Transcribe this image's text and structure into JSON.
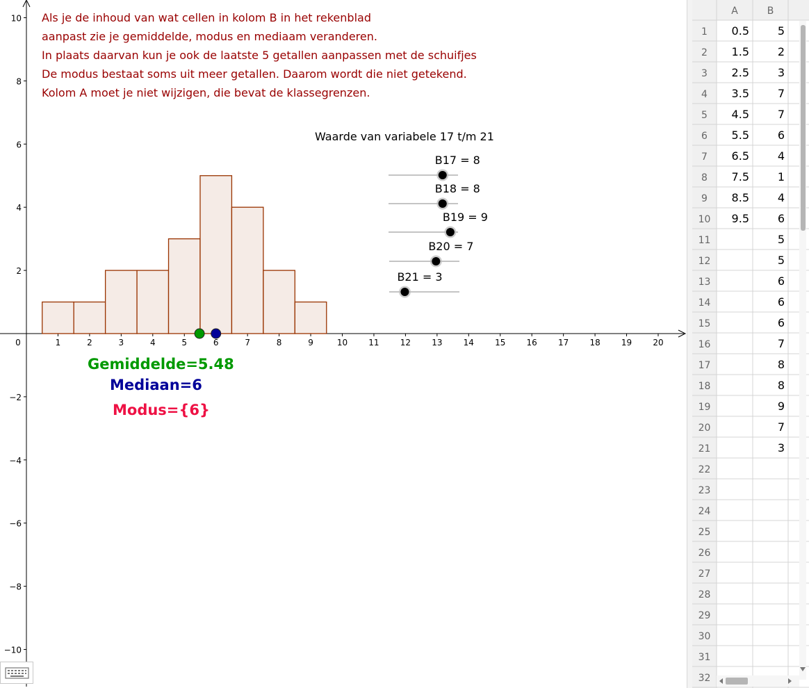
{
  "instructions": [
    "Als je de inhoud van wat cellen in kolom B in het rekenblad",
    "aanpast zie je gemiddelde, modus en mediaam veranderen.",
    "In plaats daarvan kun je ook de laatste 5 getallen aanpassen met de schuifjes",
    "De modus bestaat soms uit meer getallen. Daarom wordt die niet getekend.",
    "Kolom A moet je niet wijzigen, die bevat de klassegrenzen."
  ],
  "slider_title": "Waarde van variabele 17 t/m 21",
  "sliders": [
    {
      "label": "B17 = 8",
      "value": 8
    },
    {
      "label": "B18 = 8",
      "value": 8
    },
    {
      "label": "B19 = 9",
      "value": 9
    },
    {
      "label": "B20 = 7",
      "value": 7
    },
    {
      "label": "B21 = 3",
      "value": 3
    }
  ],
  "stats": {
    "mean_label": "Gemiddelde=5.48",
    "median_label": "Mediaan=6",
    "mode_label": "Modus={6}",
    "mean_value": 5.48,
    "median_value": 6
  },
  "colors": {
    "instructions": "#990000",
    "bar_fill": "#f5ebe6",
    "bar_stroke": "#993300",
    "mean": "#009900",
    "median": "#000099",
    "mode": "#ee1144",
    "slider_knob": "#000000"
  },
  "chart_data": {
    "type": "bar",
    "x_ticks": [
      0,
      1,
      2,
      3,
      4,
      5,
      6,
      7,
      8,
      9,
      10,
      11,
      12,
      13,
      14,
      15,
      16,
      17,
      18,
      19,
      20
    ],
    "y_ticks": [
      -10,
      -8,
      -6,
      -4,
      -2,
      2,
      4,
      6,
      8,
      10
    ],
    "xlim": [
      -0.8,
      20.9
    ],
    "ylim": [
      -10.4,
      10.6
    ],
    "bars": [
      {
        "from": 0.5,
        "to": 1.5,
        "height": 1
      },
      {
        "from": 1.5,
        "to": 2.5,
        "height": 1
      },
      {
        "from": 2.5,
        "to": 3.5,
        "height": 2
      },
      {
        "from": 3.5,
        "to": 4.5,
        "height": 2
      },
      {
        "from": 4.5,
        "to": 5.5,
        "height": 3
      },
      {
        "from": 5.5,
        "to": 6.5,
        "height": 5
      },
      {
        "from": 6.5,
        "to": 7.5,
        "height": 4
      },
      {
        "from": 7.5,
        "to": 8.5,
        "height": 2
      },
      {
        "from": 8.5,
        "to": 9.5,
        "height": 1
      }
    ]
  },
  "spreadsheet": {
    "columns": [
      "A",
      "B"
    ],
    "rows": [
      {
        "n": "1",
        "a": "0.5",
        "b": "5"
      },
      {
        "n": "2",
        "a": "1.5",
        "b": "2"
      },
      {
        "n": "3",
        "a": "2.5",
        "b": "3"
      },
      {
        "n": "4",
        "a": "3.5",
        "b": "7"
      },
      {
        "n": "5",
        "a": "4.5",
        "b": "7"
      },
      {
        "n": "6",
        "a": "5.5",
        "b": "6"
      },
      {
        "n": "7",
        "a": "6.5",
        "b": "4"
      },
      {
        "n": "8",
        "a": "7.5",
        "b": "1"
      },
      {
        "n": "9",
        "a": "8.5",
        "b": "4"
      },
      {
        "n": "10",
        "a": "9.5",
        "b": "6"
      },
      {
        "n": "11",
        "a": "",
        "b": "5"
      },
      {
        "n": "12",
        "a": "",
        "b": "5"
      },
      {
        "n": "13",
        "a": "",
        "b": "6"
      },
      {
        "n": "14",
        "a": "",
        "b": "6"
      },
      {
        "n": "15",
        "a": "",
        "b": "6"
      },
      {
        "n": "16",
        "a": "",
        "b": "7"
      },
      {
        "n": "17",
        "a": "",
        "b": "8"
      },
      {
        "n": "18",
        "a": "",
        "b": "8"
      },
      {
        "n": "19",
        "a": "",
        "b": "9"
      },
      {
        "n": "20",
        "a": "",
        "b": "7"
      },
      {
        "n": "21",
        "a": "",
        "b": "3"
      },
      {
        "n": "22",
        "a": "",
        "b": ""
      },
      {
        "n": "23",
        "a": "",
        "b": ""
      },
      {
        "n": "24",
        "a": "",
        "b": ""
      },
      {
        "n": "25",
        "a": "",
        "b": ""
      },
      {
        "n": "26",
        "a": "",
        "b": ""
      },
      {
        "n": "27",
        "a": "",
        "b": ""
      },
      {
        "n": "28",
        "a": "",
        "b": ""
      },
      {
        "n": "29",
        "a": "",
        "b": ""
      },
      {
        "n": "30",
        "a": "",
        "b": ""
      },
      {
        "n": "31",
        "a": "",
        "b": ""
      },
      {
        "n": "32",
        "a": "",
        "b": ""
      }
    ]
  },
  "icons": {
    "keyboard": "keyboard-icon",
    "scroll_left": "scroll-left-arrow-icon",
    "scroll_right": "scroll-right-arrow-icon",
    "scroll_down": "scroll-down-arrow-icon"
  }
}
